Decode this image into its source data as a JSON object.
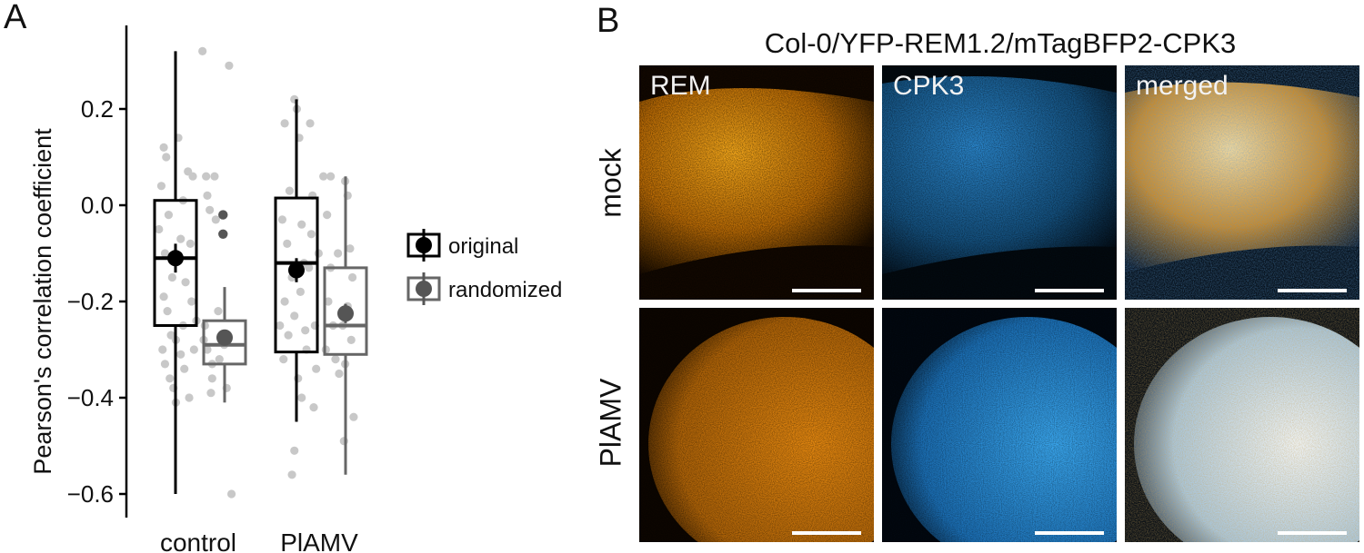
{
  "panels": {
    "a": "A",
    "b": "B"
  },
  "chart_data": {
    "type": "box",
    "ylabel": "Pearson's correlation coefficient",
    "ylim": [
      -0.65,
      0.36
    ],
    "yticks": [
      -0.6,
      -0.4,
      -0.2,
      0.0,
      0.2
    ],
    "ytick_labels": [
      "−0.6",
      "−0.4",
      "−0.2",
      "0.0",
      "0.2"
    ],
    "categories": [
      "control",
      "PlAMV"
    ],
    "legend_position": "right",
    "series": [
      {
        "name": "original",
        "color": "#000000",
        "point_color": "#000000",
        "boxes": [
          {
            "category": "control",
            "whisker_low": -0.6,
            "q1": -0.25,
            "median": -0.11,
            "q3": 0.01,
            "whisker_high": 0.32,
            "mean": -0.11,
            "se": 0.03
          },
          {
            "category": "PlAMV",
            "whisker_low": -0.45,
            "q1": -0.305,
            "median": -0.12,
            "q3": 0.015,
            "whisker_high": 0.22,
            "mean": -0.135,
            "se": 0.025
          }
        ]
      },
      {
        "name": "randomized",
        "color": "#666666",
        "point_color": "#555555",
        "boxes": [
          {
            "category": "control",
            "whisker_low": -0.41,
            "q1": -0.33,
            "median": -0.29,
            "q3": -0.24,
            "whisker_high": -0.17,
            "mean": -0.275,
            "se": 0.015
          },
          {
            "category": "PlAMV",
            "whisker_low": -0.56,
            "q1": -0.31,
            "median": -0.25,
            "q3": -0.13,
            "whisker_high": 0.06,
            "mean": -0.225,
            "se": 0.02
          }
        ]
      }
    ],
    "points": [
      {
        "x": 0.7,
        "y": 0.12
      },
      {
        "x": 0.72,
        "y": 0.1
      },
      {
        "x": 0.68,
        "y": 0.04
      },
      {
        "x": 0.74,
        "y": -0.02
      },
      {
        "x": 0.66,
        "y": -0.05
      },
      {
        "x": 0.71,
        "y": -0.1
      },
      {
        "x": 0.77,
        "y": -0.15
      },
      {
        "x": 0.7,
        "y": -0.19
      },
      {
        "x": 0.73,
        "y": -0.22
      },
      {
        "x": 0.76,
        "y": -0.27
      },
      {
        "x": 0.69,
        "y": -0.3
      },
      {
        "x": 0.71,
        "y": -0.33
      },
      {
        "x": 0.75,
        "y": -0.36
      },
      {
        "x": 0.78,
        "y": -0.38
      },
      {
        "x": 0.8,
        "y": -0.41
      },
      {
        "x": 0.82,
        "y": 0.14
      },
      {
        "x": 0.86,
        "y": 0.01
      },
      {
        "x": 0.84,
        "y": -0.07
      },
      {
        "x": 0.88,
        "y": -0.16
      },
      {
        "x": 0.86,
        "y": -0.25
      },
      {
        "x": 0.84,
        "y": -0.31
      },
      {
        "x": 0.87,
        "y": -0.34
      },
      {
        "x": 0.91,
        "y": -0.4
      },
      {
        "x": 0.92,
        "y": -0.08
      },
      {
        "x": 0.8,
        "y": -0.28
      },
      {
        "x": 0.93,
        "y": -0.2
      },
      {
        "x": 0.9,
        "y": 0.07
      },
      {
        "x": 0.95,
        "y": -0.3
      },
      {
        "x": 0.97,
        "y": -0.24
      },
      {
        "x": 0.94,
        "y": 0.06
      },
      {
        "x": 1.02,
        "y": 0.32
      },
      {
        "x": 1.05,
        "y": 0.06
      },
      {
        "x": 1.06,
        "y": 0.02
      },
      {
        "x": 1.08,
        "y": -0.01
      },
      {
        "x": 1.04,
        "y": -0.25
      },
      {
        "x": 1.06,
        "y": -0.3
      },
      {
        "x": 1.1,
        "y": -0.33
      },
      {
        "x": 1.12,
        "y": 0.06
      },
      {
        "x": 1.15,
        "y": -0.22
      },
      {
        "x": 1.18,
        "y": -0.27
      },
      {
        "x": 1.16,
        "y": -0.32
      },
      {
        "x": 1.2,
        "y": -0.29
      },
      {
        "x": 1.22,
        "y": -0.38
      },
      {
        "x": 1.24,
        "y": 0.29
      },
      {
        "x": 1.26,
        "y": -0.6
      },
      {
        "x": 1.1,
        "y": -0.36
      },
      {
        "x": 1.13,
        "y": -0.03
      },
      {
        "x": 1.09,
        "y": -0.39
      },
      {
        "x": 1.19,
        "y": -0.02
      },
      {
        "x": 1.03,
        "y": -0.28
      },
      {
        "x": 1.7,
        "y": 0.17
      },
      {
        "x": 1.74,
        "y": 0.03
      },
      {
        "x": 1.68,
        "y": -0.03
      },
      {
        "x": 1.72,
        "y": -0.08
      },
      {
        "x": 1.76,
        "y": -0.15
      },
      {
        "x": 1.7,
        "y": -0.2
      },
      {
        "x": 1.73,
        "y": -0.27
      },
      {
        "x": 1.69,
        "y": -0.32
      },
      {
        "x": 1.78,
        "y": -0.23
      },
      {
        "x": 1.66,
        "y": -0.25
      },
      {
        "x": 1.78,
        "y": 0.22
      },
      {
        "x": 1.8,
        "y": 0.2
      },
      {
        "x": 1.82,
        "y": 0.14
      },
      {
        "x": 1.84,
        "y": -0.04
      },
      {
        "x": 1.86,
        "y": -0.12
      },
      {
        "x": 1.83,
        "y": -0.18
      },
      {
        "x": 1.88,
        "y": -0.3
      },
      {
        "x": 1.81,
        "y": -0.36
      },
      {
        "x": 1.84,
        "y": -0.4
      },
      {
        "x": 1.78,
        "y": -0.51
      },
      {
        "x": 1.76,
        "y": -0.56
      },
      {
        "x": 1.91,
        "y": 0.17
      },
      {
        "x": 1.93,
        "y": 0.02
      },
      {
        "x": 1.9,
        "y": -0.13
      },
      {
        "x": 1.95,
        "y": -0.25
      },
      {
        "x": 1.96,
        "y": -0.34
      },
      {
        "x": 1.98,
        "y": -0.1
      },
      {
        "x": 1.94,
        "y": -0.42
      },
      {
        "x": 1.87,
        "y": -0.26
      },
      {
        "x": 1.92,
        "y": -0.06
      },
      {
        "x": 2.02,
        "y": 0.06
      },
      {
        "x": 2.05,
        "y": -0.02
      },
      {
        "x": 2.08,
        "y": -0.13
      },
      {
        "x": 2.06,
        "y": -0.2
      },
      {
        "x": 2.1,
        "y": -0.25
      },
      {
        "x": 2.04,
        "y": -0.3
      },
      {
        "x": 2.12,
        "y": -0.32
      },
      {
        "x": 2.15,
        "y": -0.35
      },
      {
        "x": 2.18,
        "y": -0.25
      },
      {
        "x": 2.2,
        "y": 0.05
      },
      {
        "x": 2.22,
        "y": 0.02
      },
      {
        "x": 2.24,
        "y": -0.09
      },
      {
        "x": 2.26,
        "y": -0.15
      },
      {
        "x": 2.22,
        "y": -0.21
      },
      {
        "x": 2.25,
        "y": -0.28
      },
      {
        "x": 2.2,
        "y": -0.33
      },
      {
        "x": 2.19,
        "y": -0.49
      },
      {
        "x": 2.27,
        "y": -0.44
      },
      {
        "x": 2.14,
        "y": -0.1
      },
      {
        "x": 2.08,
        "y": 0.06
      }
    ],
    "randomized_outliers": [
      {
        "x": 1.19,
        "y": -0.02
      },
      {
        "x": 1.19,
        "y": -0.06
      }
    ]
  },
  "micrograph": {
    "title": "Col-0/YFP-REM1.2/mTagBFP2-CPK3",
    "columns": [
      "REM",
      "CPK3",
      "merged"
    ],
    "rows": [
      "mock",
      "PlAMV"
    ],
    "colors": {
      "rem": "#f29a10",
      "cpk3": "#2e9be8",
      "merged": "#ffffff"
    }
  }
}
